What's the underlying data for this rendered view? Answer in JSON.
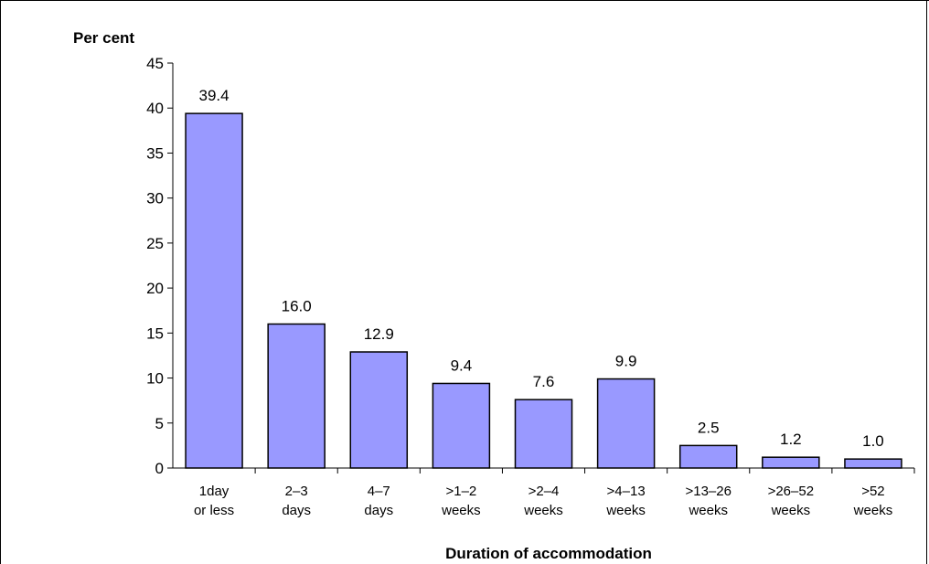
{
  "chart_data": {
    "type": "bar",
    "title": "",
    "ylabel": "Per cent",
    "xlabel": "Duration of accommodation",
    "ylim": [
      0,
      45
    ],
    "yticks": [
      0,
      5,
      10,
      15,
      20,
      25,
      30,
      35,
      40,
      45
    ],
    "categories": [
      [
        "1day",
        "or less"
      ],
      [
        "2–3",
        "days"
      ],
      [
        "4–7",
        "days"
      ],
      [
        ">1–2",
        "weeks"
      ],
      [
        ">2–4",
        "weeks"
      ],
      [
        ">4–13",
        "weeks"
      ],
      [
        ">13–26",
        "weeks"
      ],
      [
        ">26–52",
        "weeks"
      ],
      [
        ">52",
        "weeks"
      ]
    ],
    "values": [
      39.4,
      16.0,
      12.9,
      9.4,
      7.6,
      9.9,
      2.5,
      1.2,
      1.0
    ],
    "data_labels": [
      "39.4",
      "16.0",
      "12.9",
      "9.4",
      "7.6",
      "9.9",
      "2.5",
      "1.2",
      "1.0"
    ],
    "bar_color": "#9999ff",
    "bar_stroke": "#000000",
    "grid": false,
    "legend": "none"
  }
}
